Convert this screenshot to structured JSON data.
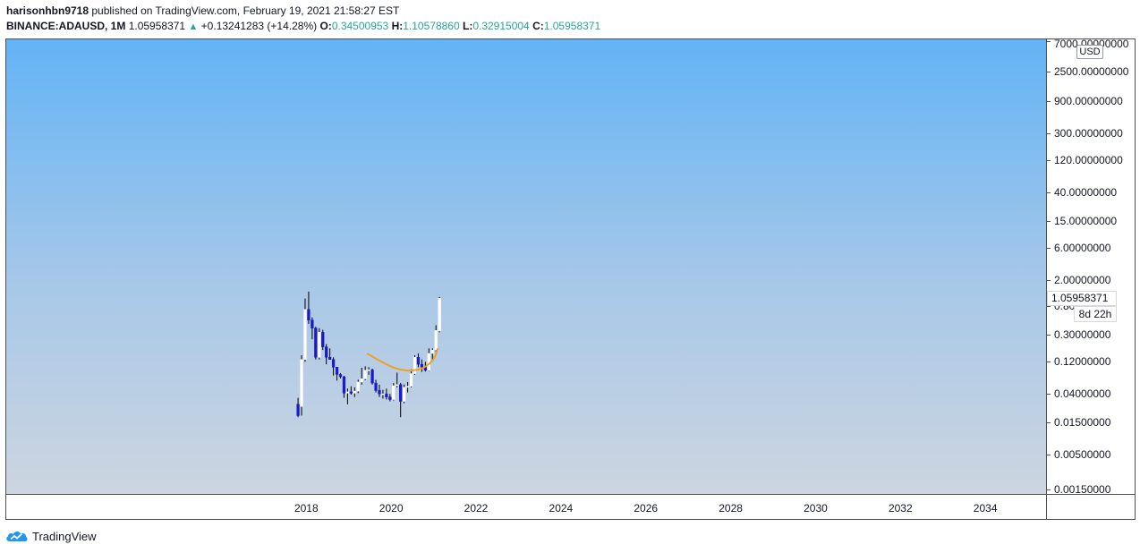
{
  "header": {
    "author": "harisonhbn9718",
    "published_text": " published on TradingView.com, February 19, 2021 21:58:27 EST",
    "symbol": "BINANCE:ADAUSD, 1M",
    "last": "1.05958371",
    "change": "+0.13241283 (+14.28%)",
    "o_label": "O:",
    "o_value": "0.34500953",
    "h_label": "H:",
    "h_value": "1.10578860",
    "l_label": "L:",
    "l_value": "0.32915004",
    "c_label": "C:",
    "c_value": "1.05958371"
  },
  "price_axis": {
    "currency": "USD",
    "last_price_label": "1.05958371",
    "countdown": "8d 22h",
    "ticks": [
      {
        "value": 7000,
        "label": "7000.00000000"
      },
      {
        "value": 2500,
        "label": "2500.00000000"
      },
      {
        "value": 900,
        "label": "900.00000000"
      },
      {
        "value": 300,
        "label": "300.00000000"
      },
      {
        "value": 120,
        "label": "120.00000000"
      },
      {
        "value": 40,
        "label": "40.00000000"
      },
      {
        "value": 15,
        "label": "15.00000000"
      },
      {
        "value": 6,
        "label": "6.00000000"
      },
      {
        "value": 2,
        "label": "2.00000000"
      },
      {
        "value": 0.8,
        "label": "0.80000000"
      },
      {
        "value": 0.3,
        "label": "0.30000000"
      },
      {
        "value": 0.12,
        "label": "0.12000000"
      },
      {
        "value": 0.04,
        "label": "0.04000000"
      },
      {
        "value": 0.015,
        "label": "0.01500000"
      },
      {
        "value": 0.005,
        "label": "0.00500000"
      },
      {
        "value": 0.0015,
        "label": "0.00150000"
      }
    ]
  },
  "time_axis": {
    "ticks": [
      "2018",
      "2020",
      "2022",
      "2024",
      "2026",
      "2028",
      "2030",
      "2032",
      "2034"
    ]
  },
  "colors": {
    "up_candle": "#ffffff",
    "down_candle": "#1a1acd",
    "wick": "#000000",
    "curve": "#f0a020",
    "positive": "#26a69a"
  },
  "chart_data": {
    "type": "candlestick",
    "symbol": "BINANCE:ADAUSD",
    "interval": "1M",
    "y_scale": "log",
    "ylim": [
      0.0013,
      7500
    ],
    "xlim": [
      "2010-12-01",
      "2035-06-01"
    ],
    "grid": false,
    "candles": [
      {
        "date": "2017-10",
        "o": 0.028,
        "h": 0.035,
        "l": 0.018,
        "c": 0.019
      },
      {
        "date": "2017-11",
        "o": 0.026,
        "h": 0.15,
        "l": 0.019,
        "c": 0.13
      },
      {
        "date": "2017-12",
        "o": 0.13,
        "h": 1.05,
        "l": 0.12,
        "c": 0.72
      },
      {
        "date": "2018-01",
        "o": 0.72,
        "h": 1.33,
        "l": 0.44,
        "c": 0.5
      },
      {
        "date": "2018-02",
        "o": 0.5,
        "h": 0.55,
        "l": 0.26,
        "c": 0.38
      },
      {
        "date": "2018-03",
        "o": 0.38,
        "h": 0.4,
        "l": 0.13,
        "c": 0.14
      },
      {
        "date": "2018-04",
        "o": 0.14,
        "h": 0.38,
        "l": 0.13,
        "c": 0.33
      },
      {
        "date": "2018-05",
        "o": 0.33,
        "h": 0.36,
        "l": 0.18,
        "c": 0.2
      },
      {
        "date": "2018-06",
        "o": 0.2,
        "h": 0.22,
        "l": 0.11,
        "c": 0.14
      },
      {
        "date": "2018-07",
        "o": 0.14,
        "h": 0.19,
        "l": 0.13,
        "c": 0.13
      },
      {
        "date": "2018-08",
        "o": 0.13,
        "h": 0.14,
        "l": 0.075,
        "c": 0.1
      },
      {
        "date": "2018-09",
        "o": 0.1,
        "h": 0.1,
        "l": 0.063,
        "c": 0.078
      },
      {
        "date": "2018-10",
        "o": 0.078,
        "h": 0.081,
        "l": 0.068,
        "c": 0.072
      },
      {
        "date": "2018-11",
        "o": 0.072,
        "h": 0.074,
        "l": 0.035,
        "c": 0.041
      },
      {
        "date": "2018-12",
        "o": 0.041,
        "h": 0.048,
        "l": 0.028,
        "c": 0.043
      },
      {
        "date": "2019-01",
        "o": 0.043,
        "h": 0.052,
        "l": 0.039,
        "c": 0.041
      },
      {
        "date": "2019-02",
        "o": 0.041,
        "h": 0.05,
        "l": 0.036,
        "c": 0.044
      },
      {
        "date": "2019-03",
        "o": 0.044,
        "h": 0.065,
        "l": 0.041,
        "c": 0.06
      },
      {
        "date": "2019-04",
        "o": 0.06,
        "h": 0.098,
        "l": 0.055,
        "c": 0.067
      },
      {
        "date": "2019-05",
        "o": 0.067,
        "h": 0.103,
        "l": 0.064,
        "c": 0.09
      },
      {
        "date": "2019-06",
        "o": 0.09,
        "h": 0.1,
        "l": 0.077,
        "c": 0.091
      },
      {
        "date": "2019-07",
        "o": 0.091,
        "h": 0.095,
        "l": 0.055,
        "c": 0.058
      },
      {
        "date": "2019-08",
        "o": 0.058,
        "h": 0.065,
        "l": 0.042,
        "c": 0.045
      },
      {
        "date": "2019-09",
        "o": 0.045,
        "h": 0.055,
        "l": 0.036,
        "c": 0.04
      },
      {
        "date": "2019-10",
        "o": 0.04,
        "h": 0.046,
        "l": 0.034,
        "c": 0.04
      },
      {
        "date": "2019-11",
        "o": 0.04,
        "h": 0.048,
        "l": 0.033,
        "c": 0.036
      },
      {
        "date": "2019-12",
        "o": 0.036,
        "h": 0.04,
        "l": 0.031,
        "c": 0.033
      },
      {
        "date": "2020-01",
        "o": 0.033,
        "h": 0.058,
        "l": 0.032,
        "c": 0.053
      },
      {
        "date": "2020-02",
        "o": 0.053,
        "h": 0.083,
        "l": 0.05,
        "c": 0.055
      },
      {
        "date": "2020-03",
        "o": 0.055,
        "h": 0.058,
        "l": 0.018,
        "c": 0.031
      },
      {
        "date": "2020-04",
        "o": 0.031,
        "h": 0.055,
        "l": 0.029,
        "c": 0.05
      },
      {
        "date": "2020-05",
        "o": 0.05,
        "h": 0.06,
        "l": 0.042,
        "c": 0.052
      },
      {
        "date": "2020-06",
        "o": 0.052,
        "h": 0.093,
        "l": 0.05,
        "c": 0.08
      },
      {
        "date": "2020-07",
        "o": 0.08,
        "h": 0.15,
        "l": 0.077,
        "c": 0.14
      },
      {
        "date": "2020-08",
        "o": 0.14,
        "h": 0.16,
        "l": 0.1,
        "c": 0.11
      },
      {
        "date": "2020-09",
        "o": 0.11,
        "h": 0.13,
        "l": 0.085,
        "c": 0.1
      },
      {
        "date": "2020-10",
        "o": 0.1,
        "h": 0.12,
        "l": 0.086,
        "c": 0.09
      },
      {
        "date": "2020-11",
        "o": 0.09,
        "h": 0.19,
        "l": 0.088,
        "c": 0.16
      },
      {
        "date": "2020-12",
        "o": 0.16,
        "h": 0.19,
        "l": 0.13,
        "c": 0.18
      },
      {
        "date": "2021-01",
        "o": 0.18,
        "h": 0.42,
        "l": 0.17,
        "c": 0.35
      },
      {
        "date": "2021-02",
        "o": 0.345,
        "h": 1.106,
        "l": 0.329,
        "c": 1.0596
      }
    ],
    "annotation_curve": {
      "type": "drawn-curve",
      "points": [
        {
          "date": "2019-06",
          "y": 0.16
        },
        {
          "date": "2019-10",
          "y": 0.12
        },
        {
          "date": "2020-02",
          "y": 0.095
        },
        {
          "date": "2020-06",
          "y": 0.087
        },
        {
          "date": "2020-10",
          "y": 0.095
        },
        {
          "date": "2021-01",
          "y": 0.13
        },
        {
          "date": "2021-02",
          "y": 0.19
        }
      ]
    }
  },
  "footer": {
    "brand": "TradingView"
  }
}
